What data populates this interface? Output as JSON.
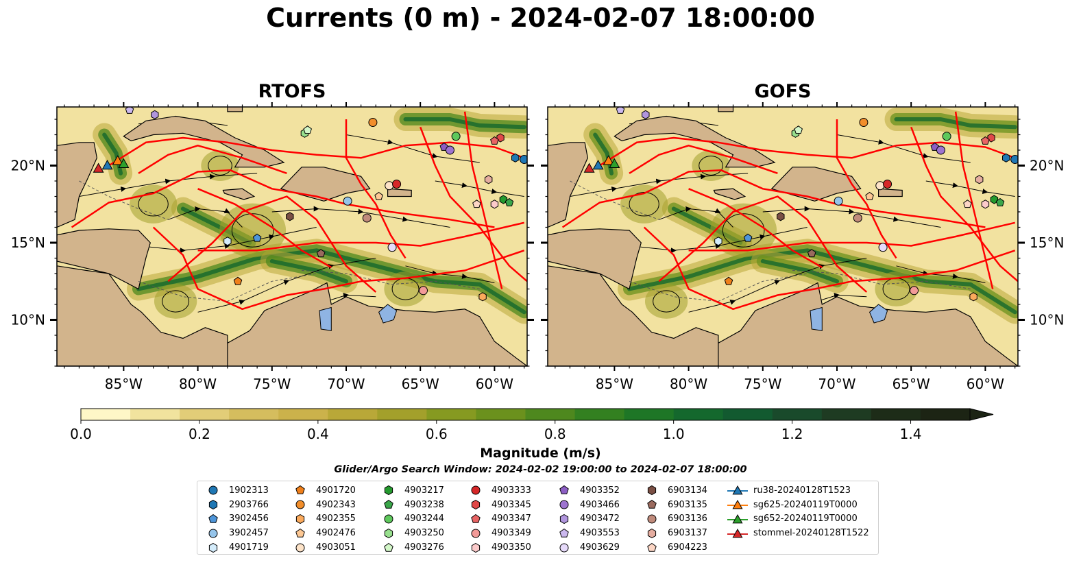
{
  "title": "Currents (0 m) - 2024-02-07 18:00:00",
  "panels": [
    {
      "title": "RTOFS"
    },
    {
      "title": "GOFS"
    }
  ],
  "map": {
    "lon_range": [
      -89.5,
      -57.8
    ],
    "lat_range": [
      7.0,
      23.8
    ],
    "lon_ticks": [
      -85,
      -80,
      -75,
      -70,
      -65,
      -60
    ],
    "lon_tick_labels": [
      "85°W",
      "80°W",
      "75°W",
      "70°W",
      "65°W",
      "60°W"
    ],
    "lat_ticks": [
      10,
      15,
      20
    ],
    "lat_tick_labels": [
      "10°N",
      "15°N",
      "20°N"
    ],
    "colors": {
      "land": "#d2b48c",
      "lake": "#8fb4e3",
      "track": "#ff0000",
      "streamline": "#000000"
    }
  },
  "colorbar": {
    "min": 0.0,
    "max": 1.5,
    "extend": "max",
    "ticks": [
      0.0,
      0.2,
      0.4,
      0.6,
      0.8,
      1.0,
      1.2,
      1.4
    ],
    "tick_labels": [
      "0.0",
      "0.2",
      "0.4",
      "0.6",
      "0.8",
      "1.0",
      "1.2",
      "1.4"
    ],
    "label": "Magnitude (m/s)",
    "colors": [
      "#fef7c7",
      "#f1e39e",
      "#e2cd78",
      "#d5bd5e",
      "#cbb24b",
      "#b9a838",
      "#a3a02b",
      "#869a21",
      "#6b911d",
      "#4e881e",
      "#338020",
      "#1e7626",
      "#14682d",
      "#125a30",
      "#194a2b",
      "#1e3b22",
      "#1d2c18",
      "#1c2414"
    ]
  },
  "search_window": "Glider/Argo Search Window: 2024-02-02 19:00:00 to 2024-02-07 18:00:00",
  "legend": [
    {
      "label": "1902313",
      "color": "#1f77b4",
      "marker": "circle"
    },
    {
      "label": "2903766",
      "color": "#1f77b4",
      "marker": "hexagon"
    },
    {
      "label": "3902456",
      "color": "#4e95d9",
      "marker": "pentagon"
    },
    {
      "label": "3902457",
      "color": "#95c4ea",
      "marker": "circle"
    },
    {
      "label": "4901719",
      "color": "#d4ecfb",
      "marker": "hexagon"
    },
    {
      "label": "4901720",
      "color": "#ef7f1a",
      "marker": "pentagon"
    },
    {
      "label": "4902343",
      "color": "#f28e2b",
      "marker": "circle"
    },
    {
      "label": "4902355",
      "color": "#fbaa5c",
      "marker": "hexagon"
    },
    {
      "label": "4902476",
      "color": "#fdc894",
      "marker": "pentagon"
    },
    {
      "label": "4903051",
      "color": "#fde3c8",
      "marker": "circle"
    },
    {
      "label": "4903217",
      "color": "#249a2e",
      "marker": "hexagon"
    },
    {
      "label": "4903238",
      "color": "#3aa64a",
      "marker": "pentagon"
    },
    {
      "label": "4903244",
      "color": "#5ec85c",
      "marker": "circle"
    },
    {
      "label": "4903250",
      "color": "#98e08e",
      "marker": "hexagon"
    },
    {
      "label": "4903276",
      "color": "#d3f7c8",
      "marker": "pentagon"
    },
    {
      "label": "4903333",
      "color": "#d62728",
      "marker": "circle"
    },
    {
      "label": "4903345",
      "color": "#e04848",
      "marker": "hexagon"
    },
    {
      "label": "4903347",
      "color": "#e86464",
      "marker": "pentagon"
    },
    {
      "label": "4903349",
      "color": "#f29a98",
      "marker": "circle"
    },
    {
      "label": "4903350",
      "color": "#fbcaca",
      "marker": "hexagon"
    },
    {
      "label": "4903352",
      "color": "#8c5ec4",
      "marker": "pentagon"
    },
    {
      "label": "4903466",
      "color": "#9e74d0",
      "marker": "circle"
    },
    {
      "label": "4903472",
      "color": "#b095dd",
      "marker": "hexagon"
    },
    {
      "label": "4903553",
      "color": "#cbb8ee",
      "marker": "pentagon"
    },
    {
      "label": "4903629",
      "color": "#e6dafa",
      "marker": "circle"
    },
    {
      "label": "6903134",
      "color": "#7a4f44",
      "marker": "hexagon"
    },
    {
      "label": "6903135",
      "color": "#9a6a5e",
      "marker": "pentagon"
    },
    {
      "label": "6903136",
      "color": "#c08b7c",
      "marker": "circle"
    },
    {
      "label": "6903137",
      "color": "#e5ada0",
      "marker": "hexagon"
    },
    {
      "label": "6904223",
      "color": "#fcd6c5",
      "marker": "pentagon"
    },
    {
      "label": "ru38-20240128T1523",
      "color": "#1f77b4",
      "marker": "triangle-line"
    },
    {
      "label": "sg625-20240119T0000",
      "color": "#ff7f0e",
      "marker": "triangle-line"
    },
    {
      "label": "sg652-20240119T0000",
      "color": "#2ca02c",
      "marker": "triangle-line"
    },
    {
      "label": "stommel-20240128T1522",
      "color": "#d62728",
      "marker": "triangle-line"
    }
  ],
  "argo_positions": [
    {
      "id": "1902313",
      "lon": -58.0,
      "lat": 20.4
    },
    {
      "id": "2903766",
      "lon": -58.6,
      "lat": 20.5
    },
    {
      "id": "3902456",
      "lon": -76.0,
      "lat": 15.3
    },
    {
      "id": "3902457",
      "lon": -69.9,
      "lat": 17.7
    },
    {
      "id": "4901719",
      "lon": -78.0,
      "lat": 15.1
    },
    {
      "id": "4901720",
      "lon": -77.3,
      "lat": 12.5
    },
    {
      "id": "4902343",
      "lon": -68.2,
      "lat": 22.8
    },
    {
      "id": "4902355",
      "lon": -60.8,
      "lat": 11.5
    },
    {
      "id": "4902476",
      "lon": -67.8,
      "lat": 18.0
    },
    {
      "id": "4903051",
      "lon": -67.1,
      "lat": 18.7
    },
    {
      "id": "4903217",
      "lon": -59.4,
      "lat": 17.8
    },
    {
      "id": "4903238",
      "lon": -59.0,
      "lat": 17.6
    },
    {
      "id": "4903244",
      "lon": -62.6,
      "lat": 21.9
    },
    {
      "id": "4903250",
      "lon": -72.8,
      "lat": 22.1
    },
    {
      "id": "4903276",
      "lon": -72.6,
      "lat": 22.3
    },
    {
      "id": "4903333",
      "lon": -66.6,
      "lat": 18.8
    },
    {
      "id": "4903345",
      "lon": -59.6,
      "lat": 21.8
    },
    {
      "id": "4903347",
      "lon": -60.0,
      "lat": 21.6
    },
    {
      "id": "4903349",
      "lon": -64.8,
      "lat": 11.9
    },
    {
      "id": "4903350",
      "lon": -60.0,
      "lat": 17.5
    },
    {
      "id": "4903352",
      "lon": -63.4,
      "lat": 21.2
    },
    {
      "id": "4903466",
      "lon": -63.0,
      "lat": 21.0
    },
    {
      "id": "4903472",
      "lon": -82.9,
      "lat": 23.3
    },
    {
      "id": "4903553",
      "lon": -84.6,
      "lat": 23.6
    },
    {
      "id": "4903629",
      "lon": -66.9,
      "lat": 14.7
    },
    {
      "id": "6903134",
      "lon": -73.8,
      "lat": 16.7
    },
    {
      "id": "6903135",
      "lon": -71.7,
      "lat": 14.3
    },
    {
      "id": "6903136",
      "lon": -68.6,
      "lat": 16.6
    },
    {
      "id": "6903137",
      "lon": -60.4,
      "lat": 19.1
    },
    {
      "id": "6904223",
      "lon": -61.2,
      "lat": 17.5
    }
  ],
  "glider_positions": [
    {
      "id": "ru38-20240128T1523",
      "lon": -86.1,
      "lat": 20.0
    },
    {
      "id": "sg625-20240119T0000",
      "lon": -85.4,
      "lat": 20.3
    },
    {
      "id": "sg652-20240119T0000",
      "lon": -85.0,
      "lat": 20.1
    },
    {
      "id": "stommel-20240128T1522",
      "lon": -86.7,
      "lat": 19.8
    }
  ]
}
